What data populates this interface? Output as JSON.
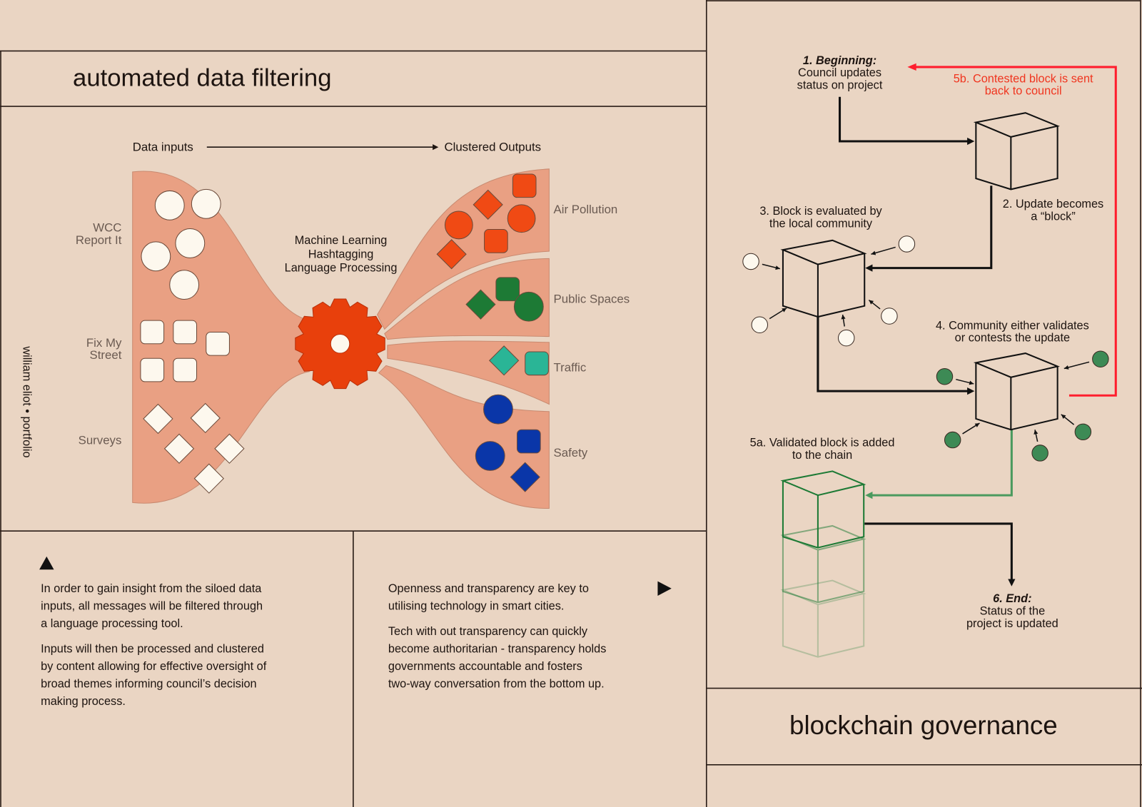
{
  "sidebar_text": "william eliot • portfolio",
  "left": {
    "title": "automated data filtering",
    "flow_start": "Data inputs",
    "flow_end": "Clustered Outputs",
    "processor": [
      "Machine Learning",
      "Hashtagging",
      "Language Processing"
    ],
    "inputs": [
      [
        "WCC",
        "Report It"
      ],
      [
        "Fix My",
        "Street"
      ],
      [
        "Surveys"
      ]
    ],
    "outputs": [
      "Air Pollution",
      "Public Spaces",
      "Traffic",
      "Safety"
    ],
    "colors": {
      "funnel": "#e9a083",
      "gear": "#e8400c",
      "air": "#f04a14",
      "public": "#1d7a35",
      "traffic": "#2ab596",
      "safety": "#0a36a8",
      "input": "#fdf8ee"
    },
    "text_col1": {
      "p1": [
        "In order to gain insight from the siloed data",
        "inputs, all messages will be filtered through",
        "a language processing tool."
      ],
      "p2": [
        "Inputs will then be processed and clustered",
        "by content allowing for effective oversight of",
        "broad themes informing council’s decision",
        "making process."
      ]
    },
    "text_col2": {
      "p1": [
        "Openness and transparency are key to",
        "utilising technology in smart cities."
      ],
      "p2": [
        "Tech with out transparency can quickly",
        "become authoritarian - transparency holds",
        "governments accountable and fosters",
        "two-way conversation from the bottom up."
      ]
    }
  },
  "right": {
    "title": "blockchain governance",
    "step1": {
      "head": "1. Beginning:",
      "lines": [
        "Council updates",
        "status on project"
      ]
    },
    "step2": [
      "2. Update becomes",
      "a “block”"
    ],
    "step3": [
      "3. Block is evaluated by",
      "the local community"
    ],
    "step4": [
      "4. Community either validates",
      "or contests the update"
    ],
    "step5a": [
      "5a. Validated block is added",
      "to the chain"
    ],
    "step5b": [
      "5b. Contested block is sent",
      "back to council"
    ],
    "step6": {
      "head": "6. End:",
      "lines": [
        "Status of the",
        "project is updated"
      ]
    },
    "colors": {
      "contested": "#ff1e2e",
      "validated": "#4a9a5e",
      "validator": "#3d8a55"
    }
  }
}
